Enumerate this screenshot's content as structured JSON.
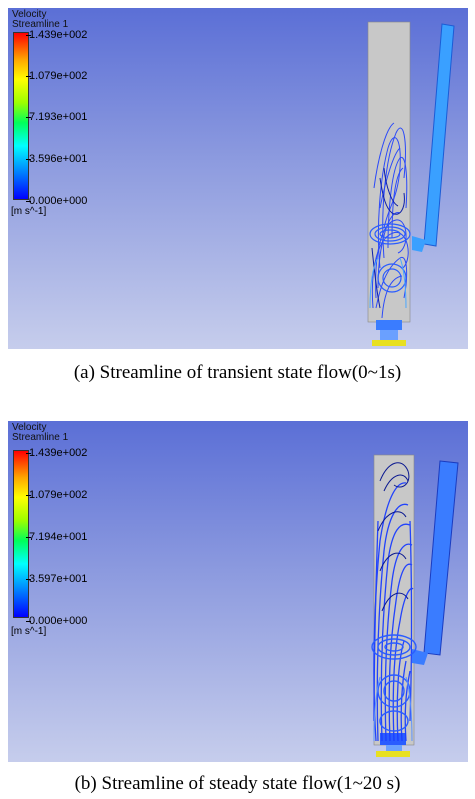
{
  "panel_a": {
    "legend_title": "Velocity",
    "legend_subtitle": "Streamline 1",
    "ticks": [
      "1.439e+002",
      "1.079e+002",
      "7.193e+001",
      "3.596e+001",
      "0.000e+000"
    ],
    "unit": "[m s^-1]",
    "caption": "(a)  Streamline  of  transient  state  flow(0~1s)"
  },
  "panel_b": {
    "legend_title": "Velocity",
    "legend_subtitle": "Streamline 1",
    "ticks": [
      "1.439e+002",
      "1.079e+002",
      "7.194e+001",
      "3.597e+001",
      "0.000e+000"
    ],
    "unit": "[m s^-1]",
    "caption": "(b)  Streamline  of  steady  state  flow(1~20  s)"
  },
  "colors": {
    "background_top": "#5b6fd6",
    "streamline_blue": "#1a3cff",
    "duct_gray": "#c8c8c8"
  }
}
